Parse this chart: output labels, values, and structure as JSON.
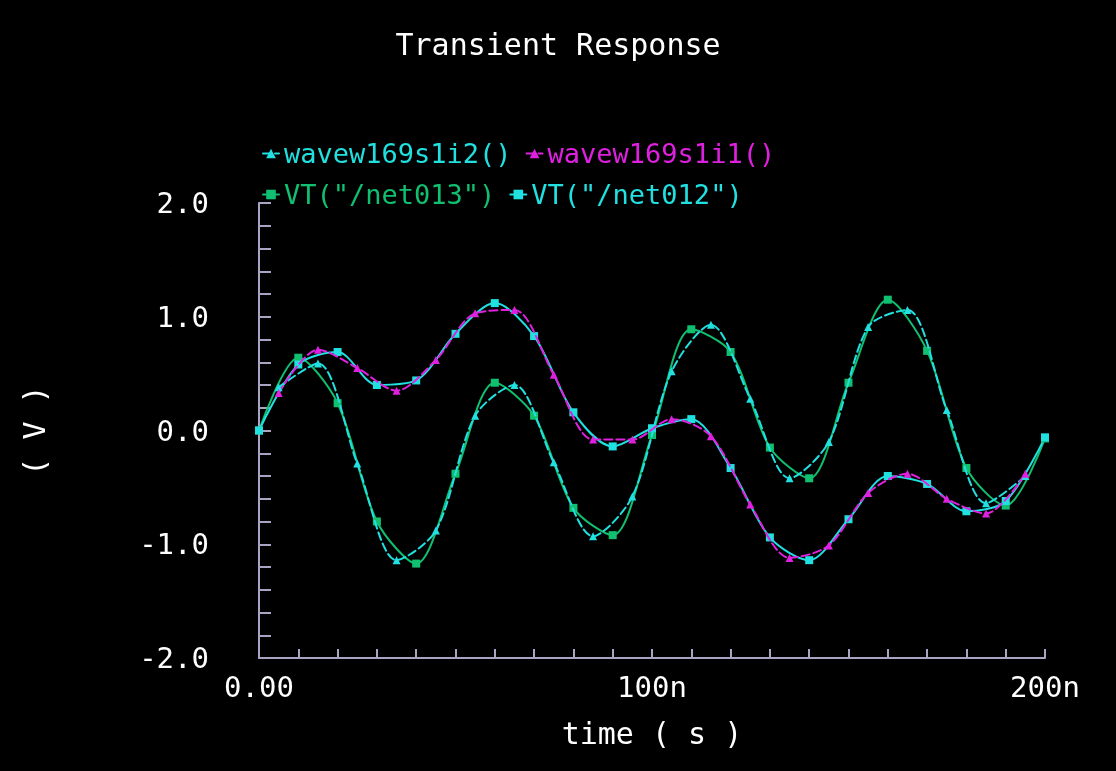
{
  "chart_data": {
    "type": "line",
    "title": "Transient Response",
    "xlabel": "time ( s )",
    "ylabel": "( V )",
    "series": [
      {
        "name": "wavew169s1i2()",
        "color": "#20e0e0",
        "marker": "triangle",
        "line_style": "dashed",
        "x": [
          5,
          15,
          25,
          35,
          45,
          55,
          65,
          75,
          85,
          95,
          105,
          115,
          125,
          135,
          145,
          155,
          165,
          175,
          185,
          195
        ],
        "values": [
          0.38,
          0.59,
          -0.29,
          -1.14,
          -0.88,
          0.13,
          0.4,
          -0.28,
          -0.93,
          -0.58,
          0.52,
          0.93,
          0.28,
          -0.42,
          -0.1,
          0.91,
          1.06,
          0.18,
          -0.64,
          -0.4
        ]
      },
      {
        "name": "wavew169s1i1()",
        "color": "#e020e0",
        "marker": "triangle",
        "line_style": "dashed",
        "x": [
          5,
          15,
          25,
          35,
          45,
          55,
          65,
          75,
          85,
          95,
          105,
          115,
          125,
          135,
          145,
          155,
          165,
          175,
          185,
          195
        ],
        "values": [
          0.33,
          0.71,
          0.55,
          0.35,
          0.62,
          1.03,
          1.06,
          0.49,
          -0.08,
          -0.08,
          0.1,
          -0.05,
          -0.65,
          -1.12,
          -1.01,
          -0.55,
          -0.38,
          -0.6,
          -0.73,
          -0.38
        ]
      },
      {
        "name": "VT(\"/net013\")",
        "color": "#10c070",
        "marker": "square",
        "line_style": "solid",
        "x": [
          0,
          10,
          20,
          30,
          40,
          50,
          60,
          70,
          80,
          90,
          100,
          110,
          120,
          130,
          140,
          150,
          160,
          170,
          180,
          190,
          200
        ],
        "values": [
          0,
          0.64,
          0.24,
          -0.8,
          -1.17,
          -0.38,
          0.42,
          0.13,
          -0.68,
          -0.92,
          -0.04,
          0.89,
          0.69,
          -0.15,
          -0.42,
          0.42,
          1.15,
          0.7,
          -0.33,
          -0.66,
          -0.07
        ]
      },
      {
        "name": "VT(\"/net012\")",
        "color": "#20e0e0",
        "marker": "square",
        "line_style": "solid",
        "x": [
          0,
          10,
          20,
          30,
          40,
          50,
          60,
          70,
          80,
          90,
          100,
          110,
          120,
          130,
          140,
          150,
          160,
          170,
          180,
          190,
          200
        ],
        "values": [
          0,
          0.58,
          0.69,
          0.4,
          0.44,
          0.85,
          1.12,
          0.83,
          0.16,
          -0.14,
          0.02,
          0.1,
          -0.33,
          -0.94,
          -1.14,
          -0.78,
          -0.4,
          -0.47,
          -0.71,
          -0.62,
          -0.06
        ]
      }
    ],
    "xlim": [
      0,
      200
    ],
    "xticks": [
      {
        "value": 0,
        "label": "0.00"
      },
      {
        "value": 10,
        "label": null
      },
      {
        "value": 20,
        "label": null
      },
      {
        "value": 30,
        "label": null
      },
      {
        "value": 40,
        "label": null
      },
      {
        "value": 50,
        "label": null
      },
      {
        "value": 60,
        "label": null
      },
      {
        "value": 70,
        "label": null
      },
      {
        "value": 80,
        "label": null
      },
      {
        "value": 90,
        "label": null
      },
      {
        "value": 100,
        "label": "100n"
      },
      {
        "value": 110,
        "label": null
      },
      {
        "value": 120,
        "label": null
      },
      {
        "value": 130,
        "label": null
      },
      {
        "value": 140,
        "label": null
      },
      {
        "value": 150,
        "label": null
      },
      {
        "value": 160,
        "label": null
      },
      {
        "value": 170,
        "label": null
      },
      {
        "value": 180,
        "label": null
      },
      {
        "value": 190,
        "label": null
      },
      {
        "value": 200,
        "label": "200n"
      }
    ],
    "ylim": [
      -2,
      2
    ],
    "yticks": [
      {
        "value": -2,
        "label": "-2.0"
      },
      {
        "value": -1.8,
        "label": null
      },
      {
        "value": -1.6,
        "label": null
      },
      {
        "value": -1.4,
        "label": null
      },
      {
        "value": -1.2,
        "label": null
      },
      {
        "value": -1,
        "label": "-1.0"
      },
      {
        "value": -0.8,
        "label": null
      },
      {
        "value": -0.6,
        "label": null
      },
      {
        "value": -0.4,
        "label": null
      },
      {
        "value": -0.2,
        "label": null
      },
      {
        "value": 0,
        "label": "0.0"
      },
      {
        "value": 0.2,
        "label": null
      },
      {
        "value": 0.4,
        "label": null
      },
      {
        "value": 0.6,
        "label": null
      },
      {
        "value": 0.8,
        "label": null
      },
      {
        "value": 1,
        "label": "1.0"
      },
      {
        "value": 1.2,
        "label": null
      },
      {
        "value": 1.4,
        "label": null
      },
      {
        "value": 1.6,
        "label": null
      },
      {
        "value": 1.8,
        "label": null
      },
      {
        "value": 2,
        "label": "2.0"
      }
    ],
    "grid": false,
    "legend": "top"
  }
}
